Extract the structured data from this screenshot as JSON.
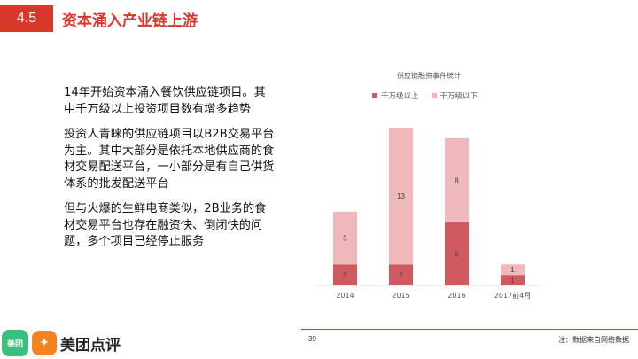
{
  "header": {
    "section_number": "4.5",
    "title": "资本涌入产业链上游"
  },
  "content": {
    "paragraphs": [
      "14年开始资本涌入餐饮供应链项目。其中千万级以上投资项目数有增多趋势",
      "投资人青睐的供应链项目以B2B交易平台为主。其中大部分是依托本地供应商的食材交易配送平台，一小部分是有自己供货体系的批发配送平台",
      "但与火爆的生鲜电商类似，2B业务的食材交易平台也存在融资快、倒闭快的问题，多个项目已经停止服务"
    ]
  },
  "chart_data": {
    "type": "bar",
    "stacked": true,
    "title": "供应链融资事件统计",
    "categories": [
      "2014",
      "2015",
      "2016",
      "2017前4月"
    ],
    "series": [
      {
        "name": "千万级以上",
        "values": [
          2,
          2,
          6,
          1
        ],
        "color": "#cf5a5f"
      },
      {
        "name": "千万级以下",
        "values": [
          5,
          13,
          8,
          1
        ],
        "color": "#efb9bb"
      }
    ],
    "ylim": [
      0,
      15.5
    ],
    "legend_position": "top",
    "grid": false
  },
  "footer": {
    "page_number": "39",
    "note": "注：数据来自网络数据",
    "logo_badge": "美团",
    "logo_text": "美团点评"
  }
}
